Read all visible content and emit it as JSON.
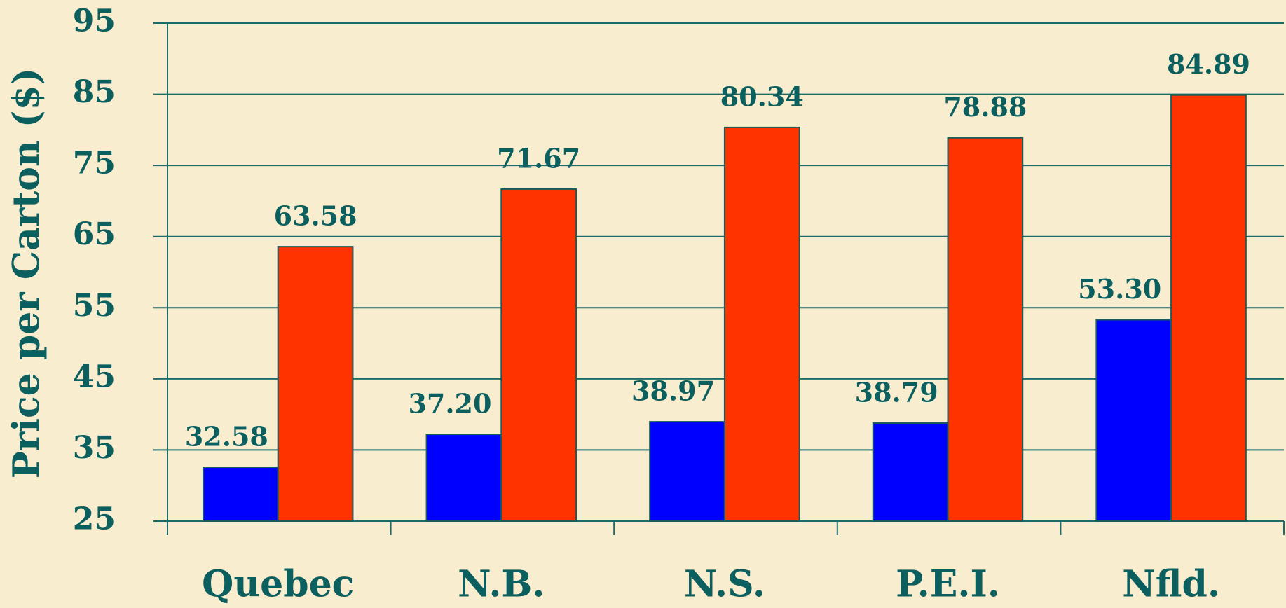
{
  "chart_data": {
    "type": "bar",
    "y_label": "Price per Carton ($)",
    "categories": [
      "Quebec",
      "N.B.",
      "N.S.",
      "P.E.I.",
      "Nfld."
    ],
    "series": [
      {
        "color": "#0000ff",
        "values": [
          32.58,
          37.2,
          38.97,
          38.79,
          53.3
        ],
        "value_labels": [
          "32.58",
          "37.20",
          "38.97",
          "38.79",
          "53.30"
        ]
      },
      {
        "color": "#ff3300",
        "values": [
          63.58,
          71.67,
          80.34,
          78.88,
          84.89
        ],
        "value_labels": [
          "63.58",
          "71.67",
          "80.34",
          "78.88",
          "84.89"
        ]
      }
    ],
    "ylim": [
      25,
      95
    ],
    "yticks": [
      25,
      35,
      45,
      55,
      65,
      75,
      85,
      95
    ],
    "grid": true
  }
}
